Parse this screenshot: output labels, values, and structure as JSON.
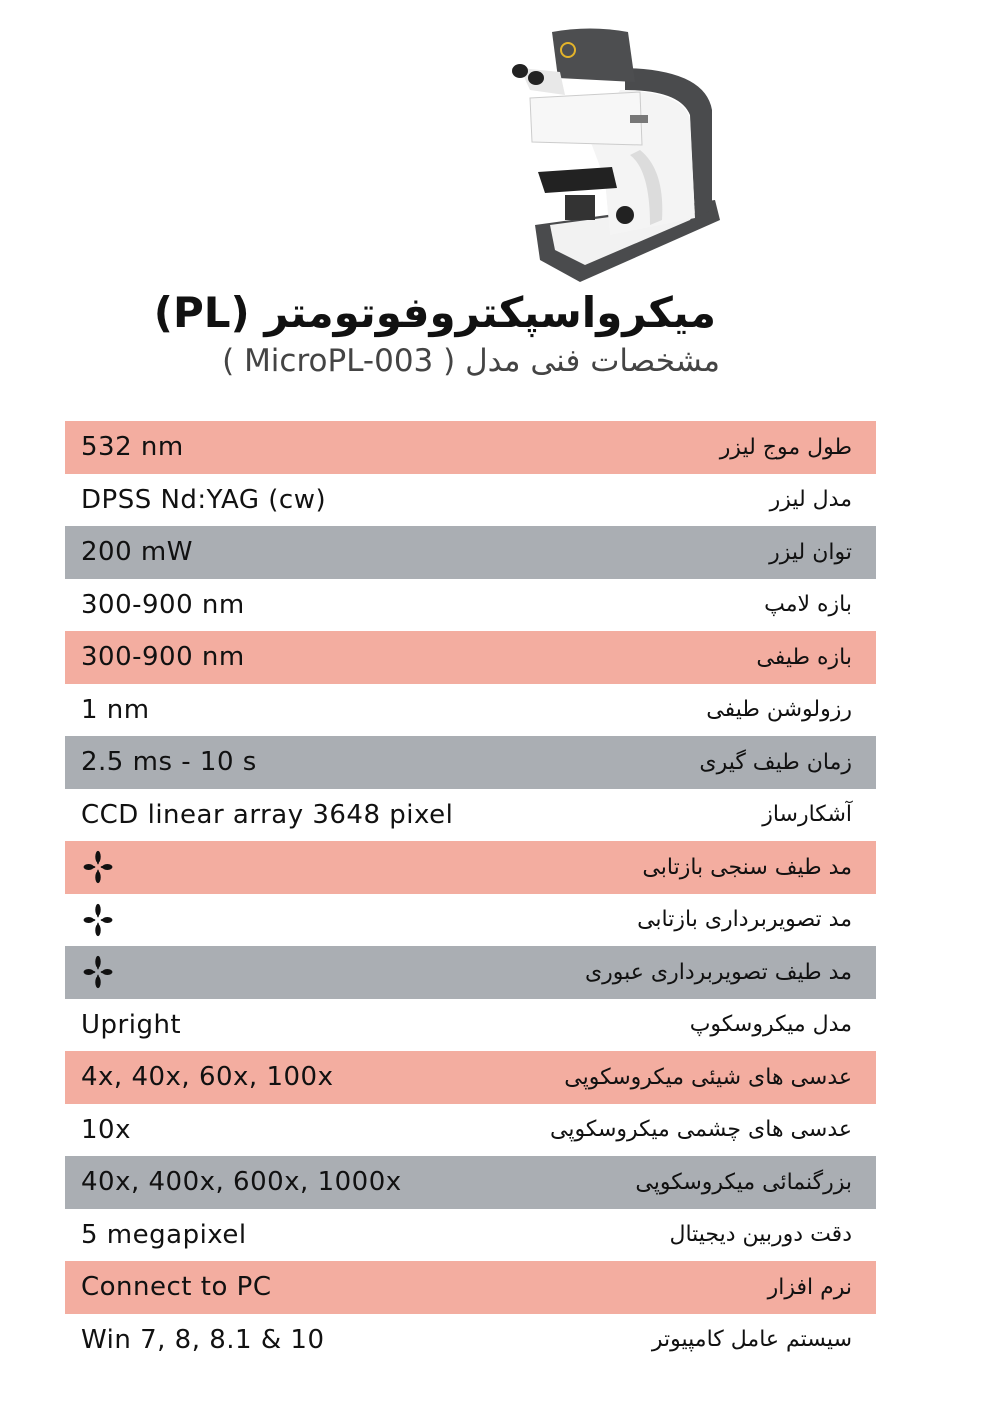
{
  "header": {
    "title": "میکرواسپکتروفوتومتر (PL)",
    "subtitle": "مشخصات فنی مدل ( MicroPL-003 )"
  },
  "colors": {
    "salmon": "#f3ada0",
    "gray": "#aaaeb3",
    "white": "#ffffff"
  },
  "specs": [
    {
      "label": "طول موج لیزر",
      "value": "532 nm"
    },
    {
      "label": "مدل لیزر",
      "value": "DPSS Nd:YAG (cw)"
    },
    {
      "label": "توان لیزر",
      "value": "200 mW"
    },
    {
      "label": "بازه لامپ",
      "value": "300-900 nm"
    },
    {
      "label": "بازه طیفی",
      "value": "300-900 nm"
    },
    {
      "label": "رزولوشن طیفی",
      "value": "1 nm"
    },
    {
      "label": "زمان طیف گیری",
      "value": "2.5 ms - 10 s"
    },
    {
      "label": "آشکارساز",
      "value": "CCD linear array 3648 pixel"
    },
    {
      "label": "مد  طیف سنجی بازتابی",
      "icon": "four-point-star-icon"
    },
    {
      "label": "مد  تصویربرداری بازتابی",
      "icon": "four-point-star-icon"
    },
    {
      "label": "مد  طیف تصویربرداری عبوری",
      "icon": "four-point-star-icon"
    },
    {
      "label": "مدل میکروسکوپ",
      "value": "Upright"
    },
    {
      "label": "عدسی های شیئی میکروسکوپی",
      "value": "4x, 40x, 60x, 100x"
    },
    {
      "label": "عدسی های چشمی میکروسکوپی",
      "value": "10x"
    },
    {
      "label": "بزرگنمائی میکروسکوپی",
      "value": "40x, 400x, 600x, 1000x"
    },
    {
      "label": "دقت دوربین دیجیتال",
      "value": "5 megapixel"
    },
    {
      "label": "نرم افزار",
      "value": "Connect to PC"
    },
    {
      "label": "سیستم عامل کامپیوتر",
      "value": "Win 7, 8, 8.1 & 10"
    }
  ]
}
